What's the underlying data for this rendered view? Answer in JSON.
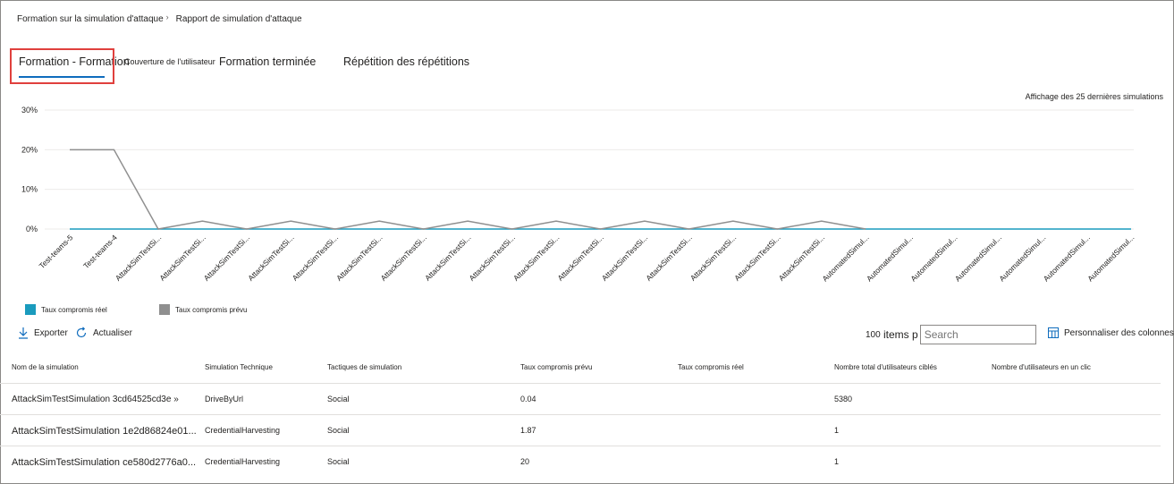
{
  "breadcrumb": {
    "items": [
      "Formation sur la simulation d'attaque",
      "Rapport de simulation d'attaque"
    ],
    "separator": "›"
  },
  "tabs": [
    {
      "label": "Formation - Formation",
      "selected": true
    },
    {
      "label": "Couverture de l'utilisateur"
    },
    {
      "label": "Formation terminée"
    },
    {
      "label": "Répétition des répétitions"
    }
  ],
  "sim_note": "Affichage des 25 dernières simulations",
  "chart_data": {
    "type": "line",
    "categories": [
      "Test-teams-5",
      "Test-teams-4",
      "AttackSimTestSi...",
      "AttackSimTestSi...",
      "AttackSimTestSi...",
      "AttackSimTestSi...",
      "AttackSimTestSi...",
      "AttackSimTestSi...",
      "AttackSimTestSi...",
      "AttackSimTestSi...",
      "AttackSimTestSi...",
      "AttackSimTestSi...",
      "AttackSimTestSi...",
      "AttackSimTestSi...",
      "AttackSimTestSi...",
      "AttackSimTestSi...",
      "AttackSimTestSi...",
      "AttackSimTestSi...",
      "AutomatedSimul...",
      "AutomatedSimul...",
      "AutomatedSimul...",
      "AutomatedSimul...",
      "AutomatedSimul...",
      "AutomatedSimul...",
      "AutomatedSimul..."
    ],
    "ylim": [
      0,
      30
    ],
    "yticks": [
      0,
      10,
      20,
      30
    ],
    "ytick_labels": [
      "0%",
      "10%",
      "20%",
      "30%"
    ],
    "grid": true,
    "legend_position": "bottom-left",
    "series": [
      {
        "name": "Taux compromis réel",
        "color": "#1a9bbd",
        "values": [
          0,
          0,
          0,
          0,
          0,
          0,
          0,
          0,
          0,
          0,
          0,
          0,
          0,
          0,
          0,
          0,
          0,
          0,
          0,
          0,
          0,
          0,
          0,
          0,
          0
        ]
      },
      {
        "name": "Taux compromis prévu",
        "color": "#8f8f8f",
        "values": [
          20,
          20,
          0,
          2,
          0,
          2,
          0,
          2,
          0,
          2,
          0,
          2,
          0,
          2,
          0,
          2,
          0,
          2,
          0,
          null,
          null,
          null,
          null,
          null,
          null
        ]
      }
    ]
  },
  "toolbar": {
    "export_label": "Exporter",
    "refresh_label": "Actualiser",
    "count": "100",
    "items_label": "items p",
    "search_placeholder": "Search",
    "customize_label": "Personnaliser des colonnes"
  },
  "table": {
    "columns": [
      "Nom de la simulation",
      "Simulation Technique",
      "Tactiques de simulation",
      "Taux compromis prévu",
      "Taux compromis réel",
      "Nombre total d'utilisateurs ciblés",
      "Nombre d'utilisateurs en un clic"
    ],
    "rows": [
      [
        "AttackSimTestSimulation 3cd64525cd3e »",
        "DriveByUrl",
        "Social",
        "0.04",
        "",
        "5380",
        ""
      ],
      [
        "AttackSimTestSimulation 1e2d86824e01...",
        "CredentialHarvesting",
        "Social",
        "1.87",
        "",
        "1",
        ""
      ],
      [
        "AttackSimTestSimulation ce580d2776a0...",
        "CredentialHarvesting",
        "Social",
        "20",
        "",
        "1",
        ""
      ]
    ]
  }
}
